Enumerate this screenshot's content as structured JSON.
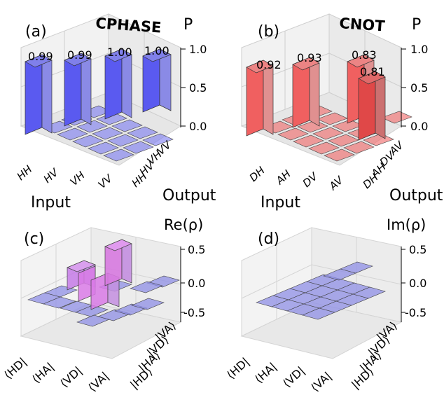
{
  "chart_data": [
    {
      "type": "bar3d",
      "panel_label": "(a)",
      "title": "CPHASE",
      "zlabel": "P",
      "xlabel": "Input",
      "ylabel": "Output",
      "inputs": [
        "HH",
        "HV",
        "VH",
        "VV"
      ],
      "outputs": [
        "HH",
        "HV",
        "VH",
        "VV"
      ],
      "zlim": [
        0,
        1
      ],
      "zticks": [
        "0.0",
        "0.5",
        "1.0"
      ],
      "color": "#6a6af0",
      "diagonal_values": [
        0.99,
        0.99,
        1.0,
        1.0
      ],
      "diagonal_labels": [
        "0.99",
        "0.99",
        "1.00",
        "1.00"
      ]
    },
    {
      "type": "bar3d",
      "panel_label": "(b)",
      "title": "CNOT",
      "zlabel": "P",
      "xlabel": "Input",
      "ylabel": "Output",
      "inputs": [
        "DH",
        "AH",
        "DV",
        "AV"
      ],
      "outputs": [
        "DH",
        "AH",
        "DV",
        "AV"
      ],
      "zlim": [
        0,
        1
      ],
      "zticks": [
        "0.0",
        "0.5",
        "1.0"
      ],
      "color": "#f07070",
      "main_values": [
        0.92,
        0.93,
        0.83,
        0.81
      ],
      "main_labels": [
        "0.92",
        "0.93",
        "0.83",
        "0.81"
      ]
    },
    {
      "type": "bar3d",
      "panel_label": "(c)",
      "title": "Re(ρ)",
      "bras": [
        "⟨HD|",
        "⟨HA|",
        "⟨VD|",
        "⟨VA|"
      ],
      "kets": [
        "|HD⟩",
        "|HA⟩",
        "|VD⟩",
        "|VA⟩"
      ],
      "zlim": [
        -0.5,
        0.5
      ],
      "zticks": [
        "-0.5",
        "0.0",
        "0.5"
      ],
      "colors": [
        "#8f8fe6",
        "#d97ae6"
      ]
    },
    {
      "type": "bar3d",
      "panel_label": "(d)",
      "title": "Im(ρ)",
      "bras": [
        "⟨HD|",
        "⟨HA|",
        "⟨VD|",
        "⟨VA|"
      ],
      "kets": [
        "|HD⟩",
        "|HA⟩",
        "|VD⟩",
        "|VA⟩"
      ],
      "zlim": [
        -0.5,
        0.5
      ],
      "zticks": [
        "-0.5",
        "0.0",
        "0.5"
      ],
      "colors": [
        "#8f8fe6"
      ]
    }
  ]
}
